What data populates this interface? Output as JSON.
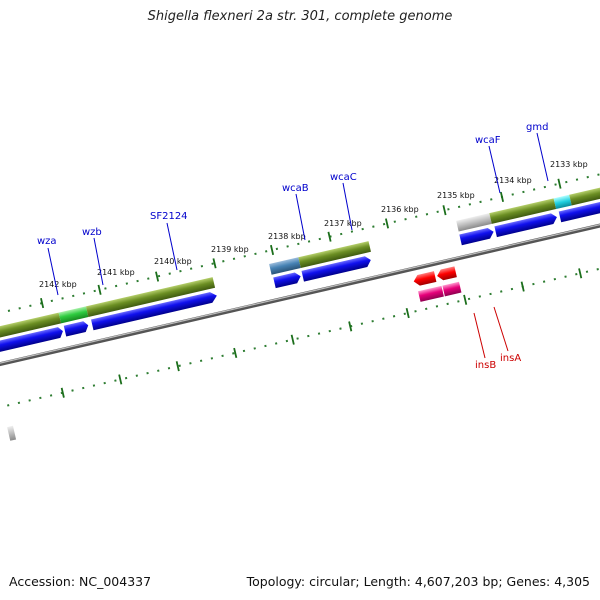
{
  "title": "Shigella flexneri 2a str. 301, complete genome",
  "footer": {
    "accession": "Accession: NC_004337",
    "summary": "Topology: circular; Length: 4,607,203 bp; Genes: 4,305"
  },
  "colors": {
    "gene_label": "#0000cc",
    "is_label": "#cc0000",
    "cds": "#0000ee",
    "gene_block": "#6b8e23",
    "tick": "#2e7d32",
    "backbone": "#808080"
  },
  "scale_labels": [
    "2142 kbp",
    "2141 kbp",
    "2140 kbp",
    "2139 kbp",
    "2138 kbp",
    "2137 kbp",
    "2136 kbp",
    "2135 kbp",
    "2134 kbp",
    "2133 kbp"
  ],
  "gene_labels": [
    "wza",
    "wzb",
    "SF2124",
    "wcaB",
    "wcaC",
    "wcaF",
    "gmd"
  ],
  "is_labels": [
    "insB",
    "insA"
  ]
}
